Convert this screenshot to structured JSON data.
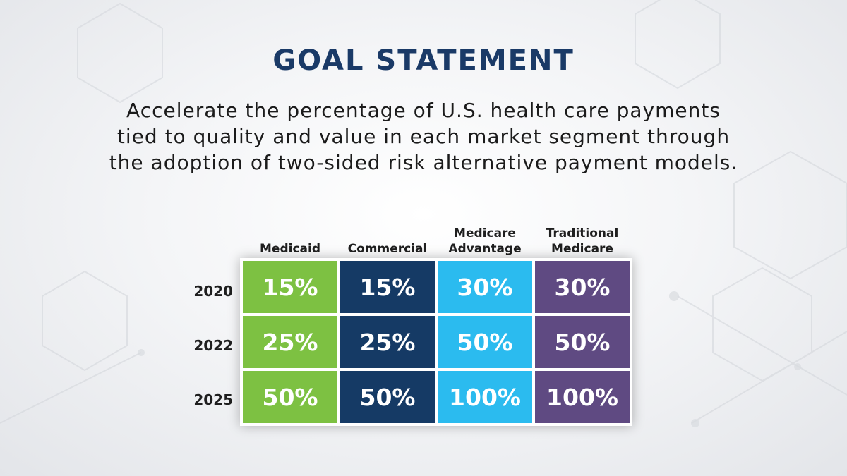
{
  "title": "GOAL STATEMENT",
  "statement": "Accelerate the percentage of U.S. health care payments tied to quality and value in each market segment through the adoption of two-sided risk alternative payment models.",
  "columns": [
    {
      "line1": "",
      "line2": "Medicaid",
      "color": "#7dc142"
    },
    {
      "line1": "",
      "line2": "Commercial",
      "color": "#153a65"
    },
    {
      "line1": "Medicare",
      "line2": "Advantage",
      "color": "#2bbbef"
    },
    {
      "line1": "Traditional",
      "line2": "Medicare",
      "color": "#5f4a82"
    }
  ],
  "rows": [
    {
      "year": "2020",
      "values": [
        "15%",
        "15%",
        "30%",
        "30%"
      ]
    },
    {
      "year": "2022",
      "values": [
        "25%",
        "25%",
        "50%",
        "50%"
      ]
    },
    {
      "year": "2025",
      "values": [
        "50%",
        "50%",
        "100%",
        "100%"
      ]
    }
  ],
  "colors": {
    "title": "#1a3a67",
    "background": "#f4f5f7"
  }
}
